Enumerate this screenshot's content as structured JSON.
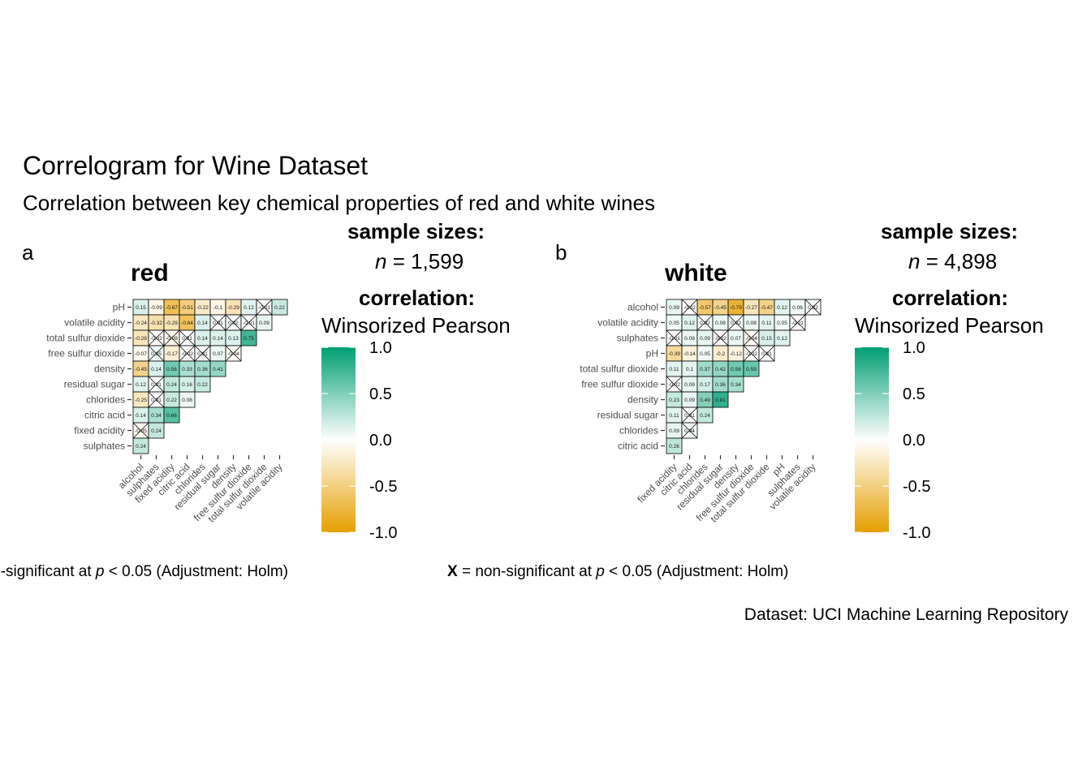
{
  "title": "Correlogram for Wine Dataset",
  "subtitle": "Correlation between key chemical properties of red and white wines",
  "caption_source": "Dataset: UCI Machine Learning Repository",
  "colors": {
    "negative": "#E69F00",
    "zero": "#ffffff",
    "positive": "#009E73"
  },
  "chart_data": [
    {
      "type": "heatmap",
      "panel_tag": "a",
      "title": "red",
      "sample_header": "sample sizes:",
      "n_symbol": "n",
      "n_rest": " = 1,599",
      "corr_header": "correlation:",
      "corr_method": "Winsorized Pearson",
      "legend_ticks": [
        "1.0",
        "0.5",
        "0.0",
        "-0.5",
        "-1.0"
      ],
      "legend_range": [
        -1,
        1
      ],
      "caption_prefix": "X",
      "caption_text": " = non-significant at ",
      "caption_p": "p",
      "caption_end": " < 0.05 (Adjustment: Holm)",
      "y_labels": [
        "pH",
        "volatile acidity",
        "total sulfur dioxide",
        "free sulfur dioxide",
        "density",
        "residual sugar",
        "chlorides",
        "citric acid",
        "fixed acidity",
        "sulphates"
      ],
      "x_labels": [
        "alcohol",
        "sulphates",
        "fixed acidity",
        "citric acid",
        "chlorides",
        "residual sugar",
        "density",
        "free sulfur dioxide",
        "total sulfur dioxide",
        "volatile acidity"
      ],
      "values": [
        [
          0.15,
          -0.09,
          -0.67,
          -0.51,
          -0.22,
          -0.1,
          -0.29,
          0.12,
          -0.01,
          0.22
        ],
        [
          -0.24,
          -0.32,
          -0.29,
          -0.64,
          0.14,
          0.01,
          0.02,
          -0.01,
          0.09,
          null
        ],
        [
          -0.28,
          -0.02,
          -0.08,
          0.01,
          0.14,
          0.14,
          0.13,
          0.75,
          null,
          null
        ],
        [
          -0.07,
          0.05,
          -0.17,
          -0.02,
          0.01,
          0.07,
          -0.04,
          null,
          null,
          null
        ],
        [
          -0.45,
          0.14,
          0.56,
          0.33,
          0.36,
          0.41,
          null,
          null,
          null,
          null
        ],
        [
          0.12,
          0.01,
          0.24,
          0.16,
          0.22,
          null,
          null,
          null,
          null,
          null
        ],
        [
          -0.25,
          0.01,
          0.22,
          0.08,
          null,
          null,
          null,
          null,
          null,
          null
        ],
        [
          0.14,
          0.34,
          0.66,
          null,
          null,
          null,
          null,
          null,
          null,
          null
        ],
        [
          -0.05,
          0.24,
          null,
          null,
          null,
          null,
          null,
          null,
          null,
          null
        ],
        [
          0.24,
          null,
          null,
          null,
          null,
          null,
          null,
          null,
          null,
          null
        ]
      ],
      "nonsignificant": [
        [
          false,
          false,
          false,
          false,
          false,
          false,
          false,
          false,
          true,
          false
        ],
        [
          false,
          false,
          false,
          false,
          false,
          true,
          true,
          true,
          false,
          null
        ],
        [
          false,
          true,
          true,
          true,
          false,
          false,
          false,
          false,
          null,
          null
        ],
        [
          false,
          true,
          false,
          true,
          true,
          false,
          true,
          null,
          null,
          null
        ],
        [
          false,
          false,
          false,
          false,
          false,
          false,
          null,
          null,
          null,
          null
        ],
        [
          false,
          true,
          false,
          false,
          false,
          null,
          null,
          null,
          null,
          null
        ],
        [
          false,
          true,
          false,
          false,
          null,
          null,
          null,
          null,
          null,
          null
        ],
        [
          false,
          false,
          false,
          null,
          null,
          null,
          null,
          null,
          null,
          null
        ],
        [
          true,
          false,
          null,
          null,
          null,
          null,
          null,
          null,
          null,
          null
        ],
        [
          false,
          null,
          null,
          null,
          null,
          null,
          null,
          null,
          null,
          null
        ]
      ]
    },
    {
      "type": "heatmap",
      "panel_tag": "b",
      "title": "white",
      "sample_header": "sample sizes:",
      "n_symbol": "n",
      "n_rest": " = 4,898",
      "corr_header": "correlation:",
      "corr_method": "Winsorized Pearson",
      "legend_ticks": [
        "1.0",
        "0.5",
        "0.0",
        "-0.5",
        "-1.0"
      ],
      "legend_range": [
        -1,
        1
      ],
      "caption_prefix": "X",
      "caption_text": " = non-significant at ",
      "caption_p": "p",
      "caption_end": " < 0.05 (Adjustment: Holm)",
      "y_labels": [
        "alcohol",
        "volatile acidity",
        "sulphates",
        "pH",
        "total sulfur dioxide",
        "free sulfur dioxide",
        "density",
        "residual sugar",
        "chlorides",
        "citric acid"
      ],
      "x_labels": [
        "fixed acidity",
        "citric acid",
        "chlorides",
        "residual sugar",
        "density",
        "free sulfur dioxide",
        "total sulfur dioxide",
        "pH",
        "sulphates",
        "volatile acidity"
      ],
      "values": [
        [
          0.09,
          -0.02,
          -0.57,
          -0.45,
          -0.79,
          -0.27,
          -0.47,
          0.12,
          0.06,
          0.02
        ],
        [
          0.05,
          0.12,
          0.02,
          0.08,
          0.02,
          0.08,
          0.11,
          0.05,
          -0.01,
          null
        ],
        [
          -0.01,
          0.08,
          0.09,
          -0.02,
          0.07,
          -0.04,
          0.15,
          0.12,
          null,
          null
        ],
        [
          -0.39,
          -0.14,
          0.05,
          -0.2,
          -0.12,
          -0.02,
          0.01,
          null,
          null,
          null
        ],
        [
          0.11,
          0.1,
          0.37,
          0.42,
          0.56,
          0.59,
          null,
          null,
          null,
          null
        ],
        [
          -0.02,
          0.09,
          0.17,
          0.36,
          0.34,
          null,
          null,
          null,
          null,
          null
        ],
        [
          0.23,
          0.09,
          0.49,
          0.81,
          null,
          null,
          null,
          null,
          null,
          null
        ],
        [
          0.11,
          0.01,
          0.24,
          null,
          null,
          null,
          null,
          null,
          null,
          null
        ],
        [
          0.09,
          0.04,
          null,
          null,
          null,
          null,
          null,
          null,
          null,
          null
        ],
        [
          0.26,
          null,
          null,
          null,
          null,
          null,
          null,
          null,
          null,
          null
        ]
      ],
      "nonsignificant": [
        [
          false,
          true,
          false,
          false,
          false,
          false,
          false,
          false,
          false,
          true
        ],
        [
          false,
          false,
          true,
          false,
          true,
          false,
          false,
          false,
          true,
          null
        ],
        [
          true,
          false,
          false,
          true,
          false,
          true,
          false,
          false,
          null,
          null
        ],
        [
          false,
          false,
          false,
          false,
          false,
          true,
          true,
          null,
          null,
          null
        ],
        [
          false,
          false,
          false,
          false,
          false,
          false,
          null,
          null,
          null,
          null
        ],
        [
          true,
          false,
          false,
          false,
          false,
          null,
          null,
          null,
          null,
          null
        ],
        [
          false,
          false,
          false,
          false,
          null,
          null,
          null,
          null,
          null,
          null
        ],
        [
          false,
          true,
          false,
          null,
          null,
          null,
          null,
          null,
          null,
          null
        ],
        [
          false,
          true,
          null,
          null,
          null,
          null,
          null,
          null,
          null,
          null
        ],
        [
          false,
          null,
          null,
          null,
          null,
          null,
          null,
          null,
          null,
          null
        ]
      ]
    }
  ]
}
